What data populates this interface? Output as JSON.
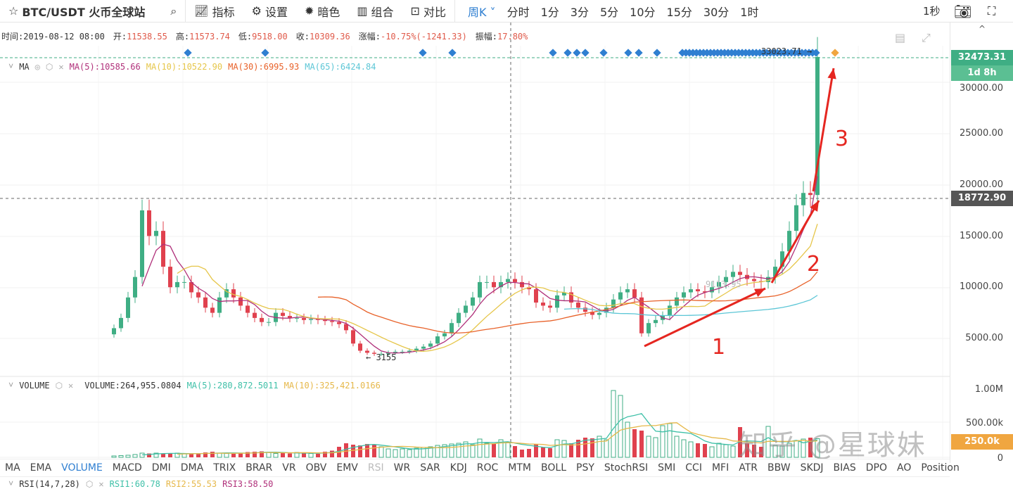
{
  "header": {
    "title": "BTC/USDT 火币全球站",
    "toolbar": [
      {
        "icon": "indicator-icon",
        "label": "指标"
      },
      {
        "icon": "gear-icon",
        "label": "设置"
      },
      {
        "icon": "sun-icon",
        "label": "暗色"
      },
      {
        "icon": "layout-icon",
        "label": "组合"
      },
      {
        "icon": "compare-icon",
        "label": "对比"
      }
    ],
    "intervals": [
      "周K",
      "分时",
      "1分",
      "3分",
      "5分",
      "10分",
      "15分",
      "30分",
      "1时"
    ],
    "active_interval": "周K",
    "refresh": "1秒"
  },
  "info": {
    "time_label": "时间:",
    "time": "2019-08-12 08:00",
    "open_label": "开:",
    "open": "11538.55",
    "high_label": "高:",
    "high": "11573.74",
    "low_label": "低:",
    "low": "9518.00",
    "close_label": "收:",
    "close": "10309.36",
    "change_label": "涨幅:",
    "change": "-10.75%(-1241.33)",
    "amp_label": "振幅:",
    "amp": "17.80%"
  },
  "ma_legend": {
    "name": "MA",
    "ma5": "MA(5):10585.66",
    "ma10": "MA(10):10522.90",
    "ma30": "MA(30):6995.93",
    "ma65": "MA(65):6424.84"
  },
  "vol_legend": {
    "name": "VOLUME",
    "vol": "VOLUME:264,955.0804",
    "ma5": "MA(5):280,872.5011",
    "ma10": "MA(10):325,421.0166"
  },
  "rsi_legend": {
    "name": "RSI(14,7,28)",
    "rsi1": "RSI1:60.78",
    "rsi2": "RSI2:55.53",
    "rsi3": "RSI3:58.50"
  },
  "price_axis": [
    "30000.00",
    "25000.00",
    "20000.00",
    "15000.00",
    "10000.00",
    "5000.00"
  ],
  "volume_axis": [
    "1.00M",
    "500.00k",
    "0"
  ],
  "tags": {
    "last_price": "32473.31",
    "countdown": "1d 8h",
    "crosshair_price": "18772.90",
    "volume_tag": "250.0k"
  },
  "markers": {
    "max_label": "33023.71 →",
    "min_label": "← 3155",
    "mid_label": "9113.95"
  },
  "indicators": [
    "MA",
    "EMA",
    "VOLUME",
    "MACD",
    "DMI",
    "DMA",
    "TRIX",
    "BRAR",
    "VR",
    "OBV",
    "EMV",
    "RSI",
    "WR",
    "SAR",
    "KDJ",
    "ROC",
    "MTM",
    "BOLL",
    "PSY",
    "StochRSI",
    "SMI",
    "CCI",
    "MFI",
    "ATR",
    "BBW",
    "SKDJ",
    "BIAS",
    "DPO",
    "AO",
    "Position"
  ],
  "active_indicator": "VOLUME",
  "dim_indicator": "RSI",
  "annotations": [
    "1",
    "2",
    "3"
  ],
  "watermark": "知乎 @星球妹",
  "colors": {
    "up": "#3fae84",
    "down": "#e0414e",
    "ma5": "#b0307a",
    "ma10": "#e6c64a",
    "ma30": "#e8622a",
    "ma65": "#5cc6d6",
    "accent": "#2f7fd1",
    "arrow": "#e52620"
  },
  "chart_data": {
    "type": "candlestick",
    "interval": "weekly",
    "ylim": [
      0,
      35000
    ],
    "closes": [
      6000,
      7000,
      9000,
      11000,
      17500,
      15000,
      15500,
      12000,
      10000,
      10500,
      10500,
      9500,
      9000,
      8000,
      7500,
      9000,
      9800,
      9000,
      8200,
      7500,
      7000,
      6600,
      6600,
      7500,
      7200,
      7000,
      7000,
      6800,
      6900,
      6800,
      6700,
      6600,
      6400,
      5800,
      4500,
      3800,
      3600,
      3500,
      3500,
      3600,
      3700,
      3700,
      3800,
      4000,
      4200,
      4500,
      5200,
      5500,
      6500,
      7500,
      8200,
      9000,
      10500,
      10500,
      10000,
      10500,
      10800,
      10500,
      10000,
      9800,
      8500,
      8200,
      8000,
      9200,
      9500,
      8500,
      8000,
      7600,
      7300,
      7500,
      8000,
      8800,
      9500,
      9800,
      9000,
      5500,
      6500,
      6800,
      7200,
      8200,
      9000,
      9500,
      9800,
      9600,
      9500,
      10000,
      10500,
      11000,
      11500,
      11200,
      10800,
      10600,
      10500,
      11000,
      12000,
      13500,
      15500,
      18000,
      19200,
      19000,
      32473
    ],
    "volumes_k": [
      20,
      25,
      30,
      40,
      60,
      55,
      60,
      50,
      55,
      60,
      50,
      45,
      50,
      70,
      80,
      60,
      55,
      50,
      60,
      75,
      80,
      85,
      70,
      55,
      60,
      55,
      70,
      60,
      55,
      50,
      80,
      95,
      150,
      200,
      180,
      170,
      190,
      175,
      150,
      120,
      110,
      120,
      110,
      130,
      140,
      150,
      170,
      180,
      190,
      200,
      220,
      180,
      260,
      200,
      190,
      250,
      210,
      160,
      110,
      120,
      190,
      140,
      130,
      250,
      240,
      200,
      250,
      280,
      270,
      300,
      250,
      950,
      880,
      500,
      400,
      380,
      300,
      280,
      450,
      480,
      300,
      250,
      220,
      200,
      190,
      150,
      200,
      180,
      160,
      430,
      200,
      180,
      150,
      440,
      170,
      160,
      200,
      240,
      260,
      280,
      265
    ]
  }
}
